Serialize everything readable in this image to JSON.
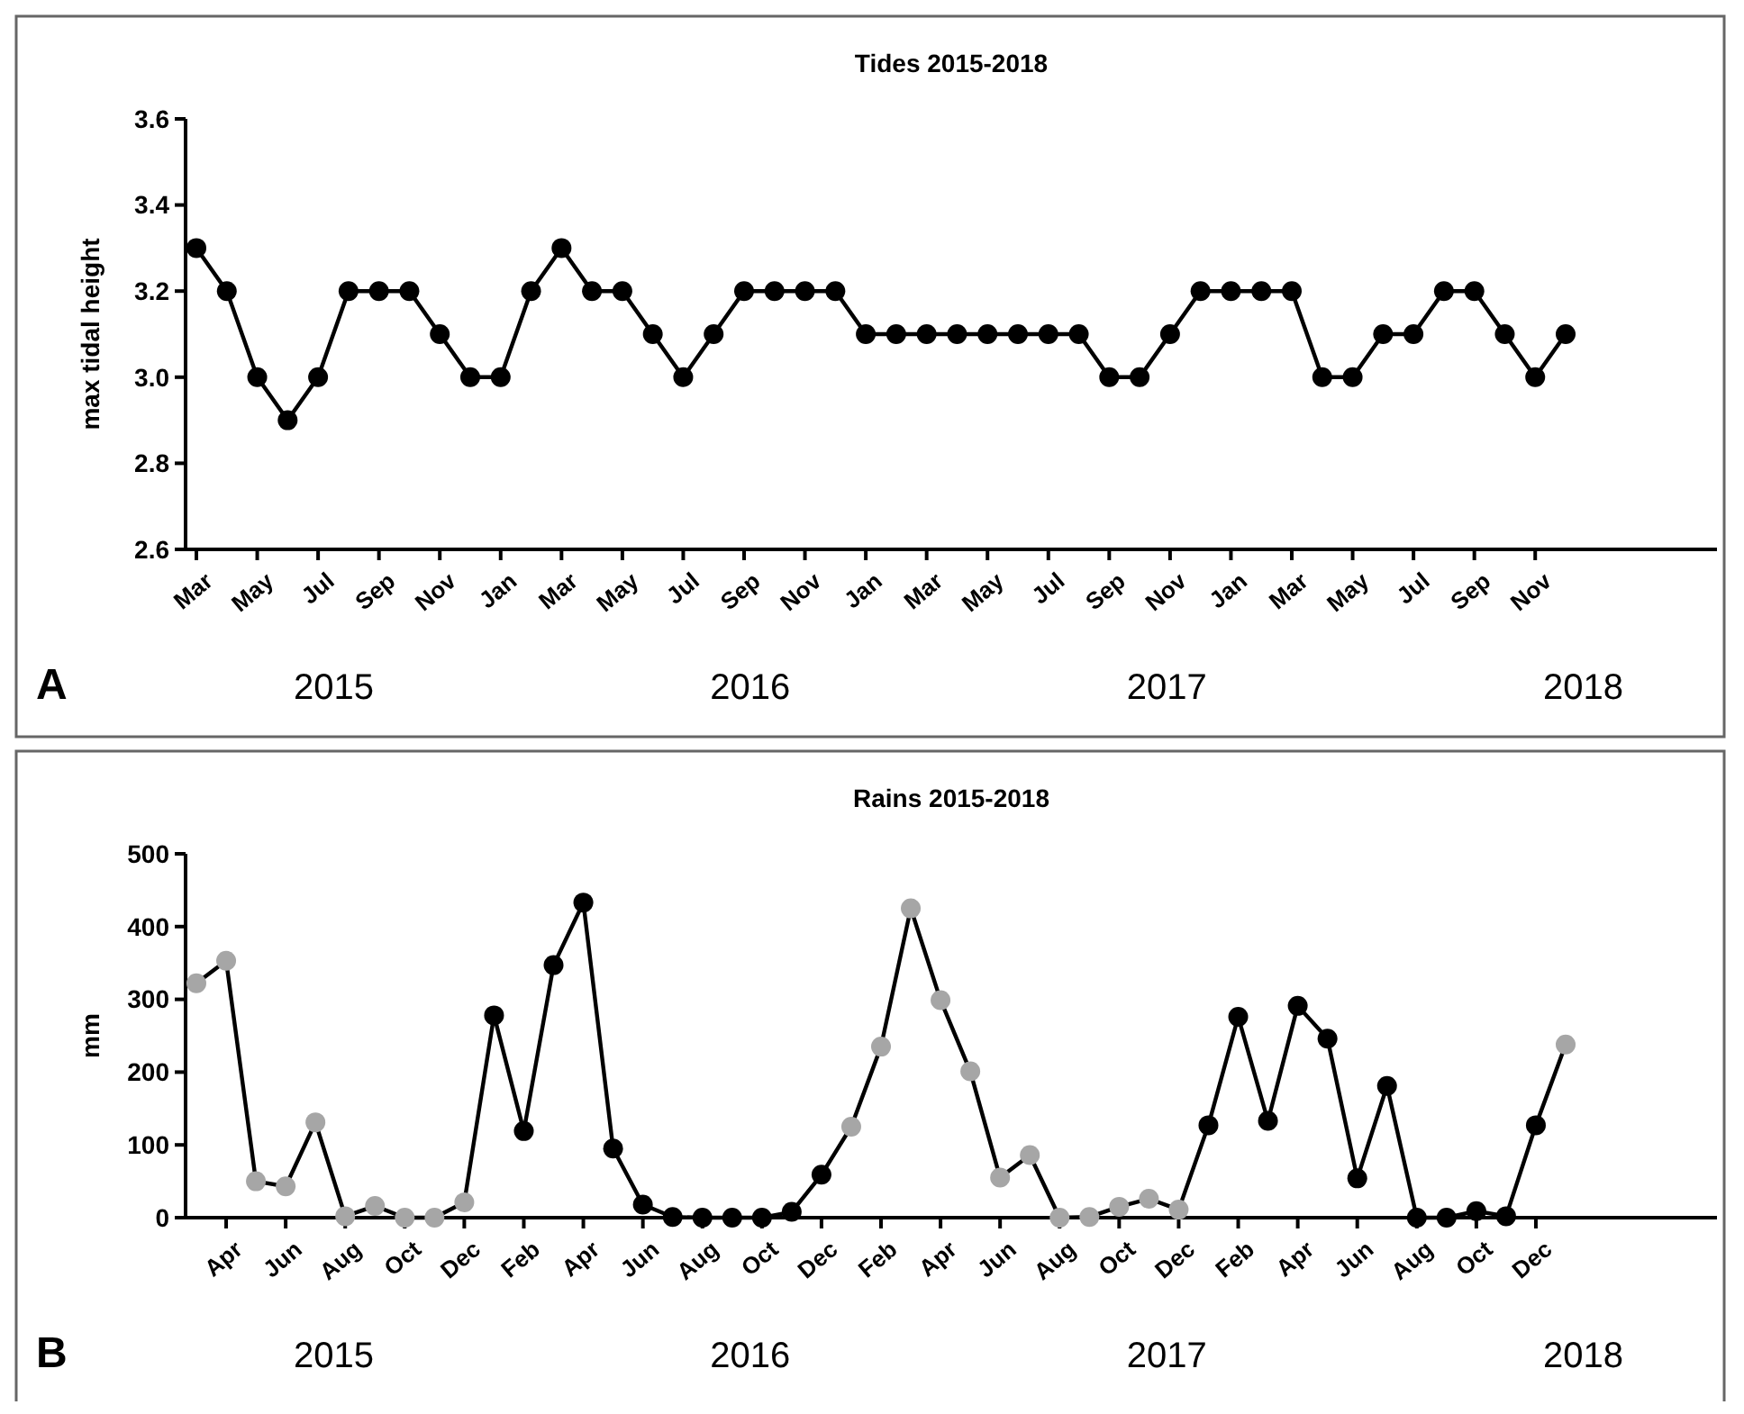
{
  "chart_data": [
    {
      "type": "line",
      "title": "Tides 2015-2018",
      "ylabel": "max tidal height",
      "categories": [
        "Mar",
        null,
        "May",
        null,
        "Jul",
        null,
        "Sep",
        null,
        "Nov",
        null,
        "Jan",
        null,
        "Mar",
        null,
        "May",
        null,
        "Jul",
        null,
        "Sep",
        null,
        "Nov",
        null,
        "Jan",
        null,
        "Mar",
        null,
        "May",
        null,
        "Jul",
        null,
        "Sep",
        null,
        "Nov",
        null,
        "Jan",
        null,
        "Mar",
        null,
        "May",
        null,
        "Jul",
        null,
        "Sep",
        null,
        "Nov",
        null
      ],
      "series": [
        {
          "color": "#000000",
          "values": [
            3.3,
            3.2,
            3.0,
            2.9,
            3.0,
            3.2,
            3.2,
            3.2,
            3.1,
            3.0,
            3.0,
            3.2,
            3.3,
            3.2,
            3.2,
            3.1,
            3.0,
            3.1,
            3.2,
            3.2,
            3.2,
            3.2,
            3.1,
            3.1,
            3.1,
            3.1,
            3.1,
            3.1,
            3.1,
            3.1,
            3.0,
            3.0,
            3.1,
            3.2,
            3.2,
            3.2,
            3.2,
            3.0,
            3.0,
            3.1,
            3.1,
            3.2,
            3.2,
            3.1,
            3.0,
            3.1
          ]
        }
      ],
      "ylim": [
        2.6,
        3.6
      ],
      "yticks": [
        2.6,
        2.8,
        {
          "value": 3,
          "label": "3.0"
        },
        3.2,
        3.4,
        3.6
      ],
      "marker": "circle",
      "line_style": "solid",
      "annotations": [
        "A",
        "2015",
        "2016",
        "2017",
        "2018"
      ]
    },
    {
      "type": "line",
      "title": "Rains 2015-2018",
      "ylabel": "mm",
      "categories": [
        null,
        "Apr",
        null,
        "Jun",
        null,
        "Aug",
        null,
        "Oct",
        null,
        "Dec",
        null,
        "Feb",
        null,
        "Apr",
        null,
        "Jun",
        null,
        "Aug",
        null,
        "Oct",
        null,
        "Dec",
        null,
        "Feb",
        null,
        "Apr",
        null,
        "Jun",
        null,
        "Aug",
        null,
        "Oct",
        null,
        "Dec",
        null,
        "Feb",
        null,
        "Apr",
        null,
        "Jun",
        null,
        "Aug",
        null,
        "Oct",
        null,
        "Dec",
        null
      ],
      "series": [
        {
          "color": "#000000",
          "values": [
            322,
            353,
            50,
            43,
            131,
            2,
            16,
            0,
            0,
            21,
            278,
            119,
            347,
            433,
            95,
            18,
            1,
            0,
            0,
            0,
            8,
            59,
            125,
            235,
            425,
            299,
            201,
            55,
            86,
            0,
            1,
            15,
            26,
            11,
            127,
            276,
            133,
            291,
            246,
            54,
            181,
            0,
            0,
            9,
            2,
            127,
            238
          ],
          "colors": [
            "#a6a6a6",
            "#a6a6a6",
            "#a6a6a6",
            "#a6a6a6",
            "#a6a6a6",
            "#a6a6a6",
            "#a6a6a6",
            "#a6a6a6",
            "#a6a6a6",
            "#a6a6a6",
            "#000000",
            "#000000",
            "#000000",
            "#000000",
            "#000000",
            "#000000",
            "#000000",
            "#000000",
            "#000000",
            "#000000",
            "#000000",
            "#000000",
            "#a6a6a6",
            "#a6a6a6",
            "#a6a6a6",
            "#a6a6a6",
            "#a6a6a6",
            "#a6a6a6",
            "#a6a6a6",
            "#a6a6a6",
            "#a6a6a6",
            "#a6a6a6",
            "#a6a6a6",
            "#a6a6a6",
            "#000000",
            "#000000",
            "#000000",
            "#000000",
            "#000000",
            "#000000",
            "#000000",
            "#000000",
            "#000000",
            "#000000",
            "#000000",
            "#000000",
            "#a6a6a6"
          ]
        }
      ],
      "ylim": [
        0,
        500
      ],
      "yticks": [
        0,
        100,
        200,
        300,
        400,
        500
      ],
      "marker": "circle",
      "line_style": "solid",
      "annotations": [
        "B",
        "2015",
        "2016",
        "2017",
        "2018"
      ]
    }
  ]
}
